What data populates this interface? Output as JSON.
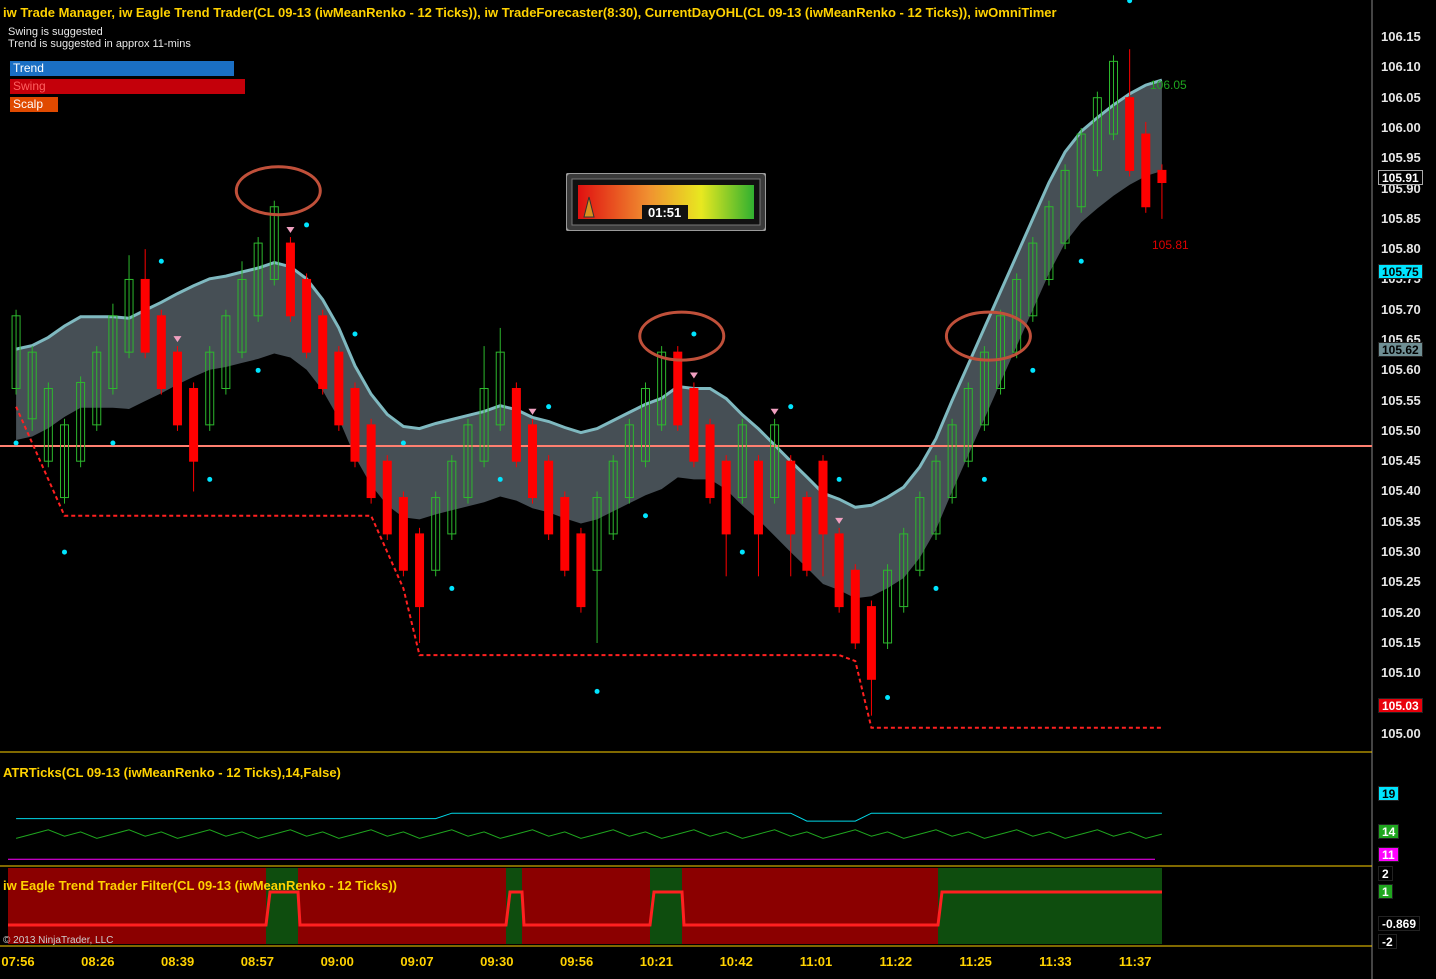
{
  "header": {
    "title": "iw Trade Manager, iw Eagle Trend Trader(CL 09-13 (iwMeanRenko - 12 Ticks)), iw TradeForecaster(8:30), CurrentDayOHL(CL 09-13 (iwMeanRenko - 12 Ticks)), iwOmniTimer"
  },
  "messages": {
    "line1": "Swing is suggested",
    "line2": "Trend is suggested in approx 11-mins"
  },
  "modes": [
    {
      "label": "Trend",
      "color": "#1a6fc4"
    },
    {
      "label": "Swing",
      "color": "#c4000a"
    },
    {
      "label": "Scalp",
      "color": "#e04a00"
    }
  ],
  "timer": {
    "value": "01:51"
  },
  "price_axis": {
    "ticks": [
      "106.15",
      "106.10",
      "106.05",
      "106.00",
      "105.95",
      "105.90",
      "105.85",
      "105.80",
      "105.75",
      "105.70",
      "105.65",
      "105.60",
      "105.55",
      "105.50",
      "105.45",
      "105.40",
      "105.35",
      "105.30",
      "105.25",
      "105.20",
      "105.15",
      "105.10",
      "105.05",
      "105.00"
    ],
    "tags": [
      {
        "label": "105.91",
        "bg": "#000000",
        "fg": "#ffffff",
        "border": "#aaaaaa"
      },
      {
        "label": "105.75",
        "bg": "#00e5ff",
        "fg": "#000000"
      },
      {
        "label": "105.62",
        "bg": "#6f8f94",
        "fg": "#000000"
      },
      {
        "label": "105.03",
        "bg": "#e8000b",
        "fg": "#ffffff"
      }
    ],
    "chart_labels": {
      "high": "106.05",
      "low": "105.81"
    }
  },
  "time_axis": [
    "07:56",
    "08:26",
    "08:39",
    "08:57",
    "09:00",
    "09:07",
    "09:30",
    "09:56",
    "10:21",
    "10:42",
    "11:01",
    "11:22",
    "11:25",
    "11:33",
    "11:37"
  ],
  "atr_panel": {
    "title": "ATRTicks(CL 09-13 (iwMeanRenko - 12 Ticks),14,False)",
    "tags": [
      {
        "label": "19",
        "bg": "#00e5ff",
        "fg": "#000000"
      },
      {
        "label": "14",
        "bg": "#1fa61f",
        "fg": "#ffffff"
      },
      {
        "label": "11",
        "bg": "#ff00ff",
        "fg": "#ffffff"
      }
    ]
  },
  "filter_panel": {
    "title": "iw Eagle Trend Trader Filter(CL 09-13 (iwMeanRenko - 12 Ticks))",
    "tags": [
      {
        "label": "2",
        "bg": "#000000",
        "fg": "#ffffff"
      },
      {
        "label": "1",
        "bg": "#1fa61f",
        "fg": "#ffffff"
      },
      {
        "label": "-0.869",
        "bg": "#000000",
        "fg": "#ffffff"
      },
      {
        "label": "-2",
        "bg": "#000000",
        "fg": "#ffffff"
      }
    ]
  },
  "copyright": "© 2013 NinjaTrader, LLC",
  "colors": {
    "background": "#000000",
    "axis_text": "#ffd200",
    "up_bar": "#2db82d",
    "down_bar": "#ff0000",
    "dots": "#00e5ff",
    "cloud": "#57636a",
    "cloud_line": "#7fb9c0",
    "stop_line": "#ff2020",
    "close_line": "#ff8070"
  },
  "chart_data": {
    "type": "candlestick",
    "ylim": [
      104.97,
      106.17
    ],
    "current_price": 105.91,
    "open_line": 105.475,
    "bars": [
      {
        "o": 105.57,
        "c": 105.69,
        "h": 105.7,
        "l": 105.56
      },
      {
        "o": 105.52,
        "c": 105.63,
        "h": 105.64,
        "l": 105.5
      },
      {
        "o": 105.45,
        "c": 105.57,
        "h": 105.58,
        "l": 105.44
      },
      {
        "o": 105.39,
        "c": 105.51,
        "h": 105.52,
        "l": 105.38
      },
      {
        "o": 105.45,
        "c": 105.58,
        "h": 105.59,
        "l": 105.44
      },
      {
        "o": 105.51,
        "c": 105.63,
        "h": 105.64,
        "l": 105.5
      },
      {
        "o": 105.57,
        "c": 105.69,
        "h": 105.71,
        "l": 105.56
      },
      {
        "o": 105.63,
        "c": 105.75,
        "h": 105.79,
        "l": 105.62
      },
      {
        "o": 105.75,
        "c": 105.63,
        "h": 105.8,
        "l": 105.62
      },
      {
        "o": 105.69,
        "c": 105.57,
        "h": 105.7,
        "l": 105.56
      },
      {
        "o": 105.63,
        "c": 105.51,
        "h": 105.64,
        "l": 105.5
      },
      {
        "o": 105.57,
        "c": 105.45,
        "h": 105.58,
        "l": 105.4
      },
      {
        "o": 105.51,
        "c": 105.63,
        "h": 105.64,
        "l": 105.5
      },
      {
        "o": 105.57,
        "c": 105.69,
        "h": 105.7,
        "l": 105.56
      },
      {
        "o": 105.63,
        "c": 105.75,
        "h": 105.78,
        "l": 105.62
      },
      {
        "o": 105.69,
        "c": 105.81,
        "h": 105.82,
        "l": 105.68
      },
      {
        "o": 105.75,
        "c": 105.87,
        "h": 105.88,
        "l": 105.74
      },
      {
        "o": 105.81,
        "c": 105.69,
        "h": 105.82,
        "l": 105.68
      },
      {
        "o": 105.75,
        "c": 105.63,
        "h": 105.76,
        "l": 105.62
      },
      {
        "o": 105.69,
        "c": 105.57,
        "h": 105.7,
        "l": 105.56
      },
      {
        "o": 105.63,
        "c": 105.51,
        "h": 105.64,
        "l": 105.5
      },
      {
        "o": 105.57,
        "c": 105.45,
        "h": 105.58,
        "l": 105.44
      },
      {
        "o": 105.51,
        "c": 105.39,
        "h": 105.52,
        "l": 105.38
      },
      {
        "o": 105.45,
        "c": 105.33,
        "h": 105.46,
        "l": 105.32
      },
      {
        "o": 105.39,
        "c": 105.27,
        "h": 105.4,
        "l": 105.26
      },
      {
        "o": 105.33,
        "c": 105.21,
        "h": 105.34,
        "l": 105.15
      },
      {
        "o": 105.27,
        "c": 105.39,
        "h": 105.4,
        "l": 105.26
      },
      {
        "o": 105.33,
        "c": 105.45,
        "h": 105.46,
        "l": 105.32
      },
      {
        "o": 105.39,
        "c": 105.51,
        "h": 105.52,
        "l": 105.38
      },
      {
        "o": 105.45,
        "c": 105.57,
        "h": 105.64,
        "l": 105.44
      },
      {
        "o": 105.51,
        "c": 105.63,
        "h": 105.67,
        "l": 105.5
      },
      {
        "o": 105.57,
        "c": 105.45,
        "h": 105.58,
        "l": 105.44
      },
      {
        "o": 105.51,
        "c": 105.39,
        "h": 105.52,
        "l": 105.38
      },
      {
        "o": 105.45,
        "c": 105.33,
        "h": 105.46,
        "l": 105.32
      },
      {
        "o": 105.39,
        "c": 105.27,
        "h": 105.4,
        "l": 105.26
      },
      {
        "o": 105.33,
        "c": 105.21,
        "h": 105.34,
        "l": 105.2
      },
      {
        "o": 105.27,
        "c": 105.39,
        "h": 105.4,
        "l": 105.15
      },
      {
        "o": 105.33,
        "c": 105.45,
        "h": 105.46,
        "l": 105.32
      },
      {
        "o": 105.39,
        "c": 105.51,
        "h": 105.52,
        "l": 105.38
      },
      {
        "o": 105.45,
        "c": 105.57,
        "h": 105.58,
        "l": 105.44
      },
      {
        "o": 105.51,
        "c": 105.63,
        "h": 105.64,
        "l": 105.5
      },
      {
        "o": 105.63,
        "c": 105.51,
        "h": 105.64,
        "l": 105.5
      },
      {
        "o": 105.57,
        "c": 105.45,
        "h": 105.58,
        "l": 105.44
      },
      {
        "o": 105.51,
        "c": 105.39,
        "h": 105.52,
        "l": 105.38
      },
      {
        "o": 105.45,
        "c": 105.33,
        "h": 105.46,
        "l": 105.26
      },
      {
        "o": 105.39,
        "c": 105.51,
        "h": 105.52,
        "l": 105.38
      },
      {
        "o": 105.45,
        "c": 105.33,
        "h": 105.46,
        "l": 105.26
      },
      {
        "o": 105.39,
        "c": 105.51,
        "h": 105.52,
        "l": 105.38
      },
      {
        "o": 105.45,
        "c": 105.33,
        "h": 105.46,
        "l": 105.26
      },
      {
        "o": 105.39,
        "c": 105.27,
        "h": 105.4,
        "l": 105.26
      },
      {
        "o": 105.45,
        "c": 105.33,
        "h": 105.46,
        "l": 105.26
      },
      {
        "o": 105.33,
        "c": 105.21,
        "h": 105.34,
        "l": 105.2
      },
      {
        "o": 105.27,
        "c": 105.15,
        "h": 105.28,
        "l": 105.14
      },
      {
        "o": 105.21,
        "c": 105.09,
        "h": 105.22,
        "l": 105.03
      },
      {
        "o": 105.15,
        "c": 105.27,
        "h": 105.28,
        "l": 105.14
      },
      {
        "o": 105.21,
        "c": 105.33,
        "h": 105.34,
        "l": 105.2
      },
      {
        "o": 105.27,
        "c": 105.39,
        "h": 105.4,
        "l": 105.26
      },
      {
        "o": 105.33,
        "c": 105.45,
        "h": 105.46,
        "l": 105.32
      },
      {
        "o": 105.39,
        "c": 105.51,
        "h": 105.52,
        "l": 105.38
      },
      {
        "o": 105.45,
        "c": 105.57,
        "h": 105.58,
        "l": 105.44
      },
      {
        "o": 105.51,
        "c": 105.63,
        "h": 105.64,
        "l": 105.5
      },
      {
        "o": 105.57,
        "c": 105.69,
        "h": 105.7,
        "l": 105.56
      },
      {
        "o": 105.63,
        "c": 105.75,
        "h": 105.76,
        "l": 105.62
      },
      {
        "o": 105.69,
        "c": 105.81,
        "h": 105.82,
        "l": 105.68
      },
      {
        "o": 105.75,
        "c": 105.87,
        "h": 105.88,
        "l": 105.74
      },
      {
        "o": 105.81,
        "c": 105.93,
        "h": 105.94,
        "l": 105.8
      },
      {
        "o": 105.87,
        "c": 105.99,
        "h": 106.0,
        "l": 105.86
      },
      {
        "o": 105.93,
        "c": 106.05,
        "h": 106.06,
        "l": 105.92
      },
      {
        "o": 105.99,
        "c": 106.11,
        "h": 106.12,
        "l": 105.98
      },
      {
        "o": 106.05,
        "c": 105.93,
        "h": 106.13,
        "l": 105.92
      },
      {
        "o": 105.99,
        "c": 105.87,
        "h": 106.01,
        "l": 105.86
      },
      {
        "o": 105.93,
        "c": 105.91,
        "h": 105.94,
        "l": 105.85
      }
    ]
  }
}
